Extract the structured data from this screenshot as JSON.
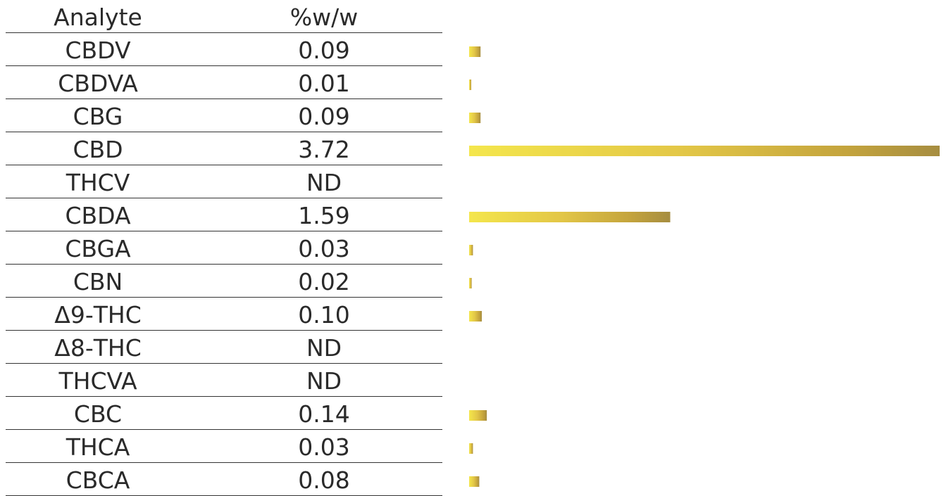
{
  "chart_data": {
    "type": "bar",
    "orientation": "horizontal",
    "columns": [
      "Analyte",
      "%w/w"
    ],
    "categories": [
      "CBDV",
      "CBDVA",
      "CBG",
      "CBD",
      "THCV",
      "CBDA",
      "CBGA",
      "CBN",
      "Δ9-THC",
      "Δ8-THC",
      "THCVA",
      "CBC",
      "THCA",
      "CBCA"
    ],
    "value_labels": [
      "0.09",
      "0.01",
      "0.09",
      "3.72",
      "ND",
      "1.59",
      "0.03",
      "0.02",
      "0.10",
      "ND",
      "ND",
      "0.14",
      "0.03",
      "0.08"
    ],
    "values": [
      0.09,
      0.01,
      0.09,
      3.72,
      0,
      1.59,
      0.03,
      0.02,
      0.1,
      0,
      0,
      0.14,
      0.03,
      0.08
    ],
    "xlim": [
      0,
      3.72
    ],
    "grid": false,
    "legend": "none",
    "bar_color": "#d9bd45"
  }
}
